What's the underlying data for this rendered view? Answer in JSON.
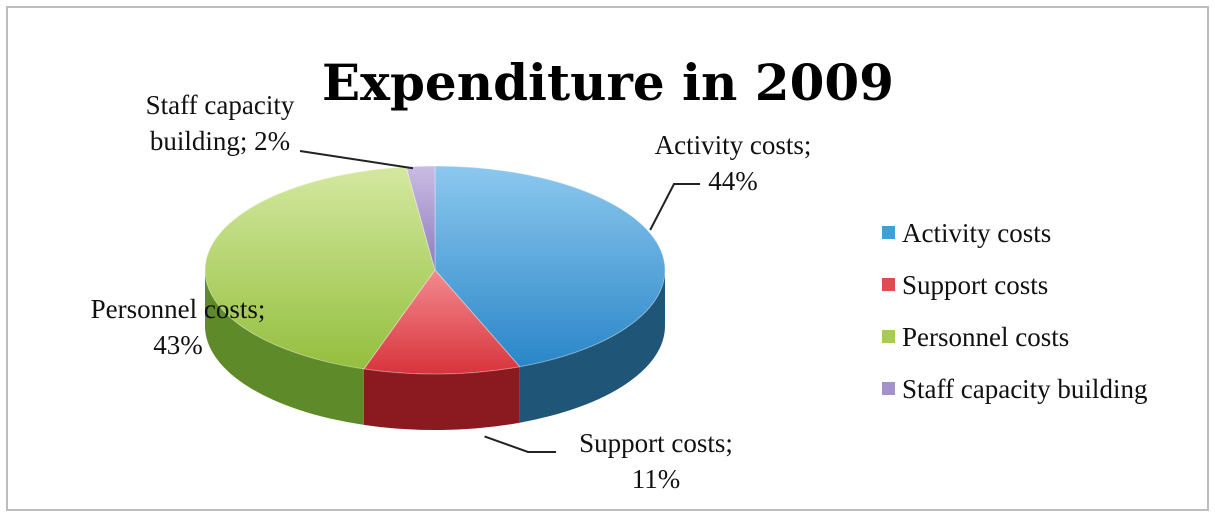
{
  "chart_data": {
    "type": "pie",
    "style": "3d",
    "title": "Expenditure in 2009",
    "categories": [
      "Activity costs",
      "Support costs",
      "Personnel costs",
      "Staff capacity building"
    ],
    "values": [
      44,
      11,
      43,
      2
    ],
    "unit": "%",
    "data_labels": [
      [
        "Activity costs;",
        "44%"
      ],
      [
        "Support costs;",
        "11%"
      ],
      [
        "Personnel costs;",
        "43%"
      ],
      [
        "Staff capacity",
        "building; 2%"
      ]
    ],
    "colors": [
      "#3d9fdc",
      "#e04a50",
      "#a8cc52",
      "#a491cc"
    ],
    "side_colors": [
      "#1f5576",
      "#8a1a20",
      "#5f8a2a",
      "#5c4e80"
    ],
    "legend": {
      "placement": "right",
      "entries": [
        "Activity costs",
        "Support costs",
        "Personnel costs",
        "Staff capacity building"
      ]
    }
  }
}
